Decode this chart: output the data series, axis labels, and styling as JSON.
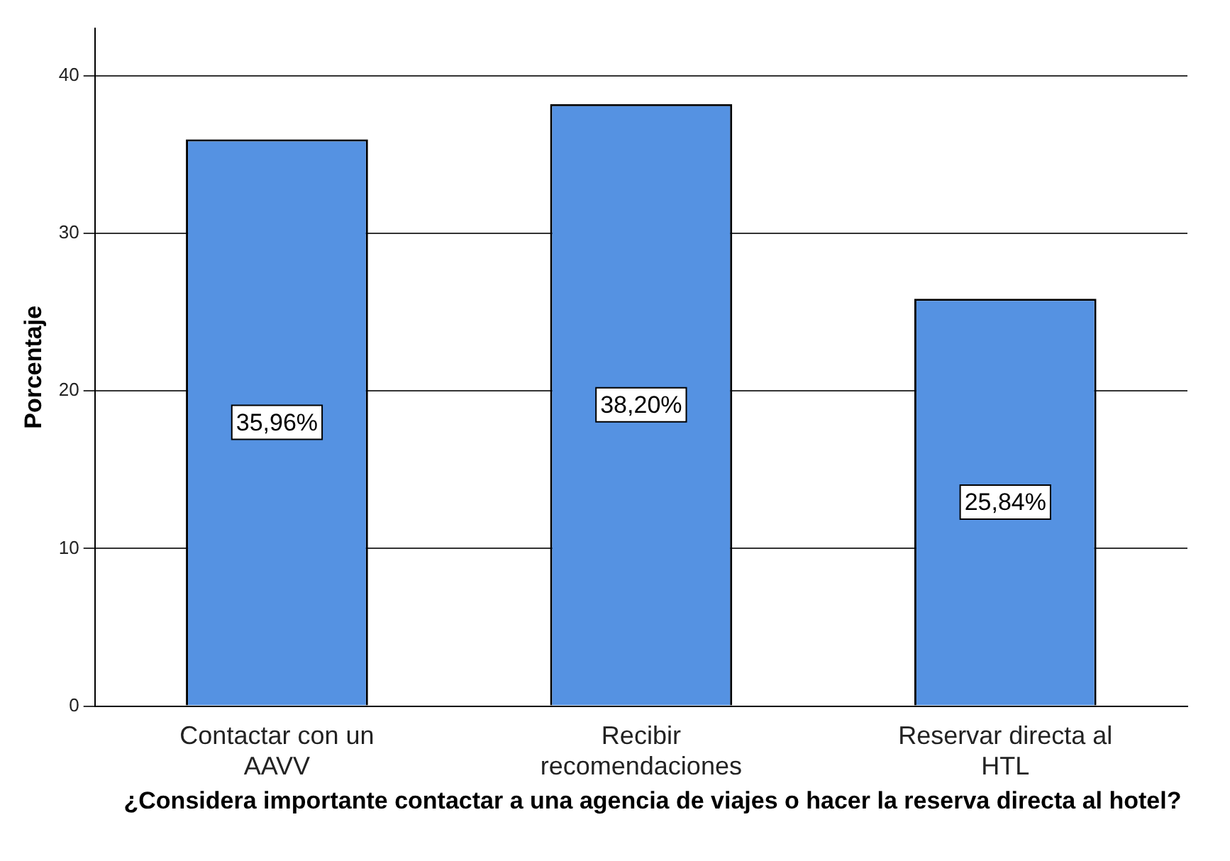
{
  "chart_data": {
    "type": "bar",
    "xlabel": "¿Considera importante contactar a una agencia de viajes o hacer la reserva directa al hotel?",
    "ylabel": "Porcentaje",
    "categories": [
      "Contactar con un AAVV",
      "Recibir recomendaciones",
      "Reservar directa al HTL"
    ],
    "values": [
      35.96,
      38.2,
      25.84
    ],
    "value_labels": [
      "35,96%",
      "38,20%",
      "25,84%"
    ],
    "color": "#5592e2",
    "ylim": [
      0,
      43
    ],
    "yticks": [
      0,
      10,
      20,
      30,
      40
    ],
    "grid": "y"
  }
}
